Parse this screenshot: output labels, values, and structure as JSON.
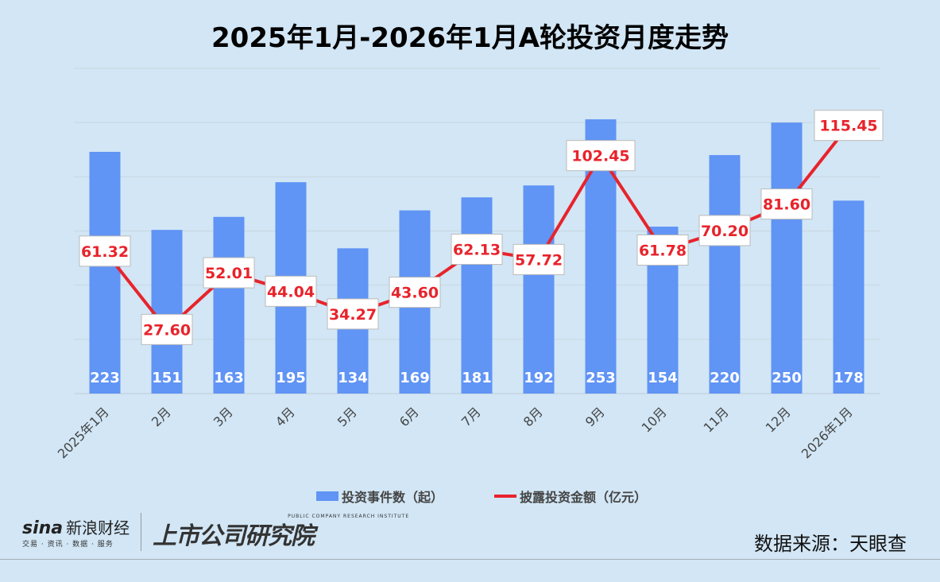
{
  "chart_data": {
    "type": "bar+line",
    "title": "2025年1月-2026年1月A轮投资月度走势",
    "categories": [
      "2025年1月",
      "2月",
      "3月",
      "4月",
      "5月",
      "6月",
      "7月",
      "8月",
      "9月",
      "10月",
      "11月",
      "12月",
      "2026年1月"
    ],
    "series": [
      {
        "name": "投资事件数（起）",
        "type": "bar",
        "axis": "left",
        "color": "#6094f5",
        "values": [
          223,
          151,
          163,
          195,
          134,
          169,
          181,
          192,
          253,
          154,
          220,
          250,
          178
        ]
      },
      {
        "name": "披露投资金额（亿元）",
        "type": "line",
        "axis": "right",
        "color": "#e8232b",
        "values": [
          61.32,
          27.6,
          52.01,
          44.04,
          34.27,
          43.6,
          62.13,
          57.72,
          102.45,
          61.78,
          70.2,
          81.6,
          115.45
        ],
        "labels": [
          "61.32",
          "27.60",
          "52.01",
          "44.04",
          "34.27",
          "43.60",
          "62.13",
          "57.72",
          "102.45",
          "61.78",
          "70.20",
          "81.60",
          "115.45"
        ]
      }
    ],
    "ylim": [
      0,
      300
    ],
    "y2lim": [
      0,
      140
    ],
    "grid": true,
    "legend": "bottom"
  },
  "source": "数据来源：天眼查",
  "logos": {
    "sina": "sina",
    "sina_cn": "新浪财经",
    "sina_sub": "交易 · 资讯 · 数据 · 服务",
    "institute": "上市公司研究院",
    "institute_en": "PUBLIC COMPANY RESEARCH INSTITUTE"
  }
}
